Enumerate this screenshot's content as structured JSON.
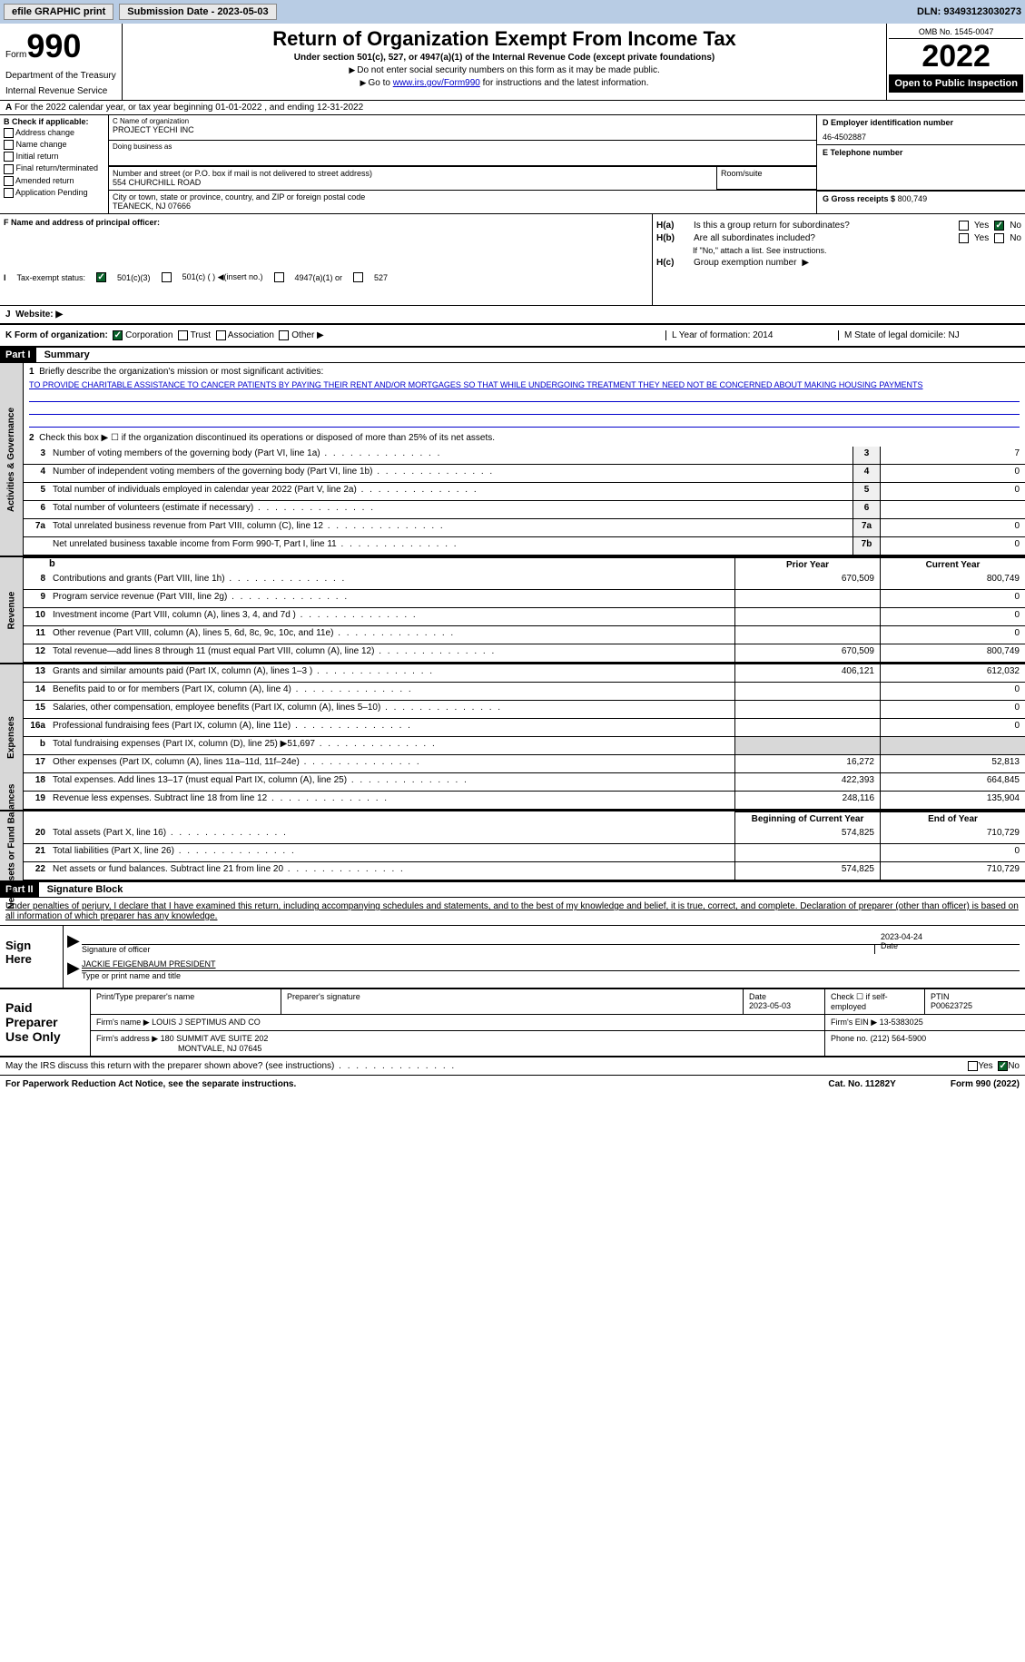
{
  "topbar": {
    "efile_label": "efile GRAPHIC print",
    "submission_label": "Submission Date - 2023-05-03",
    "dln_label": "DLN: 93493123030273"
  },
  "header": {
    "form_label": "Form",
    "form_number": "990",
    "dept1": "Department of the Treasury",
    "dept2": "Internal Revenue Service",
    "title": "Return of Organization Exempt From Income Tax",
    "subtitle": "Under section 501(c), 527, or 4947(a)(1) of the Internal Revenue Code (except private foundations)",
    "instr1": "Do not enter social security numbers on this form as it may be made public.",
    "instr2_pre": "Go to ",
    "instr2_link": "www.irs.gov/Form990",
    "instr2_post": " for instructions and the latest information.",
    "omb": "OMB No. 1545-0047",
    "year": "2022",
    "open_public": "Open to Public Inspection"
  },
  "row_a": "For the 2022 calendar year, or tax year beginning 01-01-2022   , and ending 12-31-2022",
  "section_b": {
    "label": "B Check if applicable:",
    "items": [
      "Address change",
      "Name change",
      "Initial return",
      "Final return/terminated",
      "Amended return",
      "Application Pending"
    ]
  },
  "section_c": {
    "name_label": "C Name of organization",
    "name": "PROJECT YECHI INC",
    "dba_label": "Doing business as",
    "addr_label": "Number and street (or P.O. box if mail is not delivered to street address)",
    "addr": "554 CHURCHILL ROAD",
    "room_label": "Room/suite",
    "city_label": "City or town, state or province, country, and ZIP or foreign postal code",
    "city": "TEANECK, NJ  07666"
  },
  "section_d": {
    "ein_label": "D Employer identification number",
    "ein": "46-4502887",
    "phone_label": "E Telephone number",
    "gross_label": "G Gross receipts $",
    "gross": "800,749"
  },
  "section_f": {
    "label": "F Name and address of principal officer:"
  },
  "section_h": {
    "ha_label": "Is this a group return for subordinates?",
    "hb_label": "Are all subordinates included?",
    "hb_note": "If \"No,\" attach a list. See instructions.",
    "hc_label": "Group exemption number",
    "yes": "Yes",
    "no": "No"
  },
  "section_i": {
    "label": "Tax-exempt status:",
    "opt1": "501(c)(3)",
    "opt2": "501(c) (  ) ◀(insert no.)",
    "opt3": "4947(a)(1) or",
    "opt4": "527"
  },
  "section_j": {
    "label": "Website: ▶"
  },
  "section_k": {
    "label": "K Form of organization:",
    "corp": "Corporation",
    "trust": "Trust",
    "assoc": "Association",
    "other": "Other ▶"
  },
  "section_l": {
    "label": "L Year of formation: 2014"
  },
  "section_m": {
    "label": "M State of legal domicile: NJ"
  },
  "part1": {
    "header": "Part I",
    "title": "Summary",
    "line1_label": "Briefly describe the organization's mission or most significant activities:",
    "mission": "TO PROVIDE CHARITABLE ASSISTANCE TO CANCER PATIENTS BY PAYING THEIR RENT AND/OR MORTGAGES SO THAT WHILE UNDERGOING TREATMENT THEY NEED NOT BE CONCERNED ABOUT MAKING HOUSING PAYMENTS",
    "line2": "Check this box ▶ ☐ if the organization discontinued its operations or disposed of more than 25% of its net assets.",
    "rows_act": [
      {
        "n": "3",
        "t": "Number of voting members of the governing body (Part VI, line 1a)",
        "b": "3",
        "v": "7"
      },
      {
        "n": "4",
        "t": "Number of independent voting members of the governing body (Part VI, line 1b)",
        "b": "4",
        "v": "0"
      },
      {
        "n": "5",
        "t": "Total number of individuals employed in calendar year 2022 (Part V, line 2a)",
        "b": "5",
        "v": "0"
      },
      {
        "n": "6",
        "t": "Total number of volunteers (estimate if necessary)",
        "b": "6",
        "v": ""
      },
      {
        "n": "7a",
        "t": "Total unrelated business revenue from Part VIII, column (C), line 12",
        "b": "7a",
        "v": "0"
      },
      {
        "n": "",
        "t": "Net unrelated business taxable income from Form 990-T, Part I, line 11",
        "b": "7b",
        "v": "0"
      }
    ],
    "prior_year": "Prior Year",
    "current_year": "Current Year",
    "rows_rev": [
      {
        "n": "8",
        "t": "Contributions and grants (Part VIII, line 1h)",
        "p": "670,509",
        "c": "800,749"
      },
      {
        "n": "9",
        "t": "Program service revenue (Part VIII, line 2g)",
        "p": "",
        "c": "0"
      },
      {
        "n": "10",
        "t": "Investment income (Part VIII, column (A), lines 3, 4, and 7d )",
        "p": "",
        "c": "0"
      },
      {
        "n": "11",
        "t": "Other revenue (Part VIII, column (A), lines 5, 6d, 8c, 9c, 10c, and 11e)",
        "p": "",
        "c": "0"
      },
      {
        "n": "12",
        "t": "Total revenue—add lines 8 through 11 (must equal Part VIII, column (A), line 12)",
        "p": "670,509",
        "c": "800,749"
      }
    ],
    "rows_exp": [
      {
        "n": "13",
        "t": "Grants and similar amounts paid (Part IX, column (A), lines 1–3 )",
        "p": "406,121",
        "c": "612,032"
      },
      {
        "n": "14",
        "t": "Benefits paid to or for members (Part IX, column (A), line 4)",
        "p": "",
        "c": "0"
      },
      {
        "n": "15",
        "t": "Salaries, other compensation, employee benefits (Part IX, column (A), lines 5–10)",
        "p": "",
        "c": "0"
      },
      {
        "n": "16a",
        "t": "Professional fundraising fees (Part IX, column (A), line 11e)",
        "p": "",
        "c": "0"
      },
      {
        "n": "b",
        "t": "Total fundraising expenses (Part IX, column (D), line 25) ▶51,697",
        "p": "SHADE",
        "c": "SHADE"
      },
      {
        "n": "17",
        "t": "Other expenses (Part IX, column (A), lines 11a–11d, 11f–24e)",
        "p": "16,272",
        "c": "52,813"
      },
      {
        "n": "18",
        "t": "Total expenses. Add lines 13–17 (must equal Part IX, column (A), line 25)",
        "p": "422,393",
        "c": "664,845"
      },
      {
        "n": "19",
        "t": "Revenue less expenses. Subtract line 18 from line 12",
        "p": "248,116",
        "c": "135,904"
      }
    ],
    "beg_year": "Beginning of Current Year",
    "end_year": "End of Year",
    "rows_net": [
      {
        "n": "20",
        "t": "Total assets (Part X, line 16)",
        "p": "574,825",
        "c": "710,729"
      },
      {
        "n": "21",
        "t": "Total liabilities (Part X, line 26)",
        "p": "",
        "c": "0"
      },
      {
        "n": "22",
        "t": "Net assets or fund balances. Subtract line 21 from line 20",
        "p": "574,825",
        "c": "710,729"
      }
    ],
    "side_act": "Activities & Governance",
    "side_rev": "Revenue",
    "side_exp": "Expenses",
    "side_net": "Net Assets or Fund Balances"
  },
  "part2": {
    "header": "Part II",
    "title": "Signature Block",
    "declaration": "Under penalties of perjury, I declare that I have examined this return, including accompanying schedules and statements, and to the best of my knowledge and belief, it is true, correct, and complete. Declaration of preparer (other than officer) is based on all information of which preparer has any knowledge.",
    "sign_here": "Sign Here",
    "sig_officer": "Signature of officer",
    "sig_date": "2023-04-24",
    "date_label": "Date",
    "officer_name": "JACKIE FEIGENBAUM PRESIDENT",
    "type_name": "Type or print name and title",
    "paid_label": "Paid Preparer Use Only",
    "prep_name_label": "Print/Type preparer's name",
    "prep_sig_label": "Preparer's signature",
    "prep_date_label": "Date",
    "prep_date": "2023-05-03",
    "check_if": "Check ☐ if self-employed",
    "ptin_label": "PTIN",
    "ptin": "P00623725",
    "firm_name_label": "Firm's name   ▶",
    "firm_name": "LOUIS J SEPTIMUS AND CO",
    "firm_ein_label": "Firm's EIN ▶",
    "firm_ein": "13-5383025",
    "firm_addr_label": "Firm's address ▶",
    "firm_addr1": "180 SUMMIT AVE SUITE 202",
    "firm_addr2": "MONTVALE, NJ  07645",
    "phone_label": "Phone no.",
    "phone": "(212) 564-5900"
  },
  "footer": {
    "discuss": "May the IRS discuss this return with the preparer shown above? (see instructions)",
    "paperwork": "For Paperwork Reduction Act Notice, see the separate instructions.",
    "cat": "Cat. No. 11282Y",
    "form": "Form 990 (2022)",
    "yes": "Yes",
    "no": "No"
  }
}
